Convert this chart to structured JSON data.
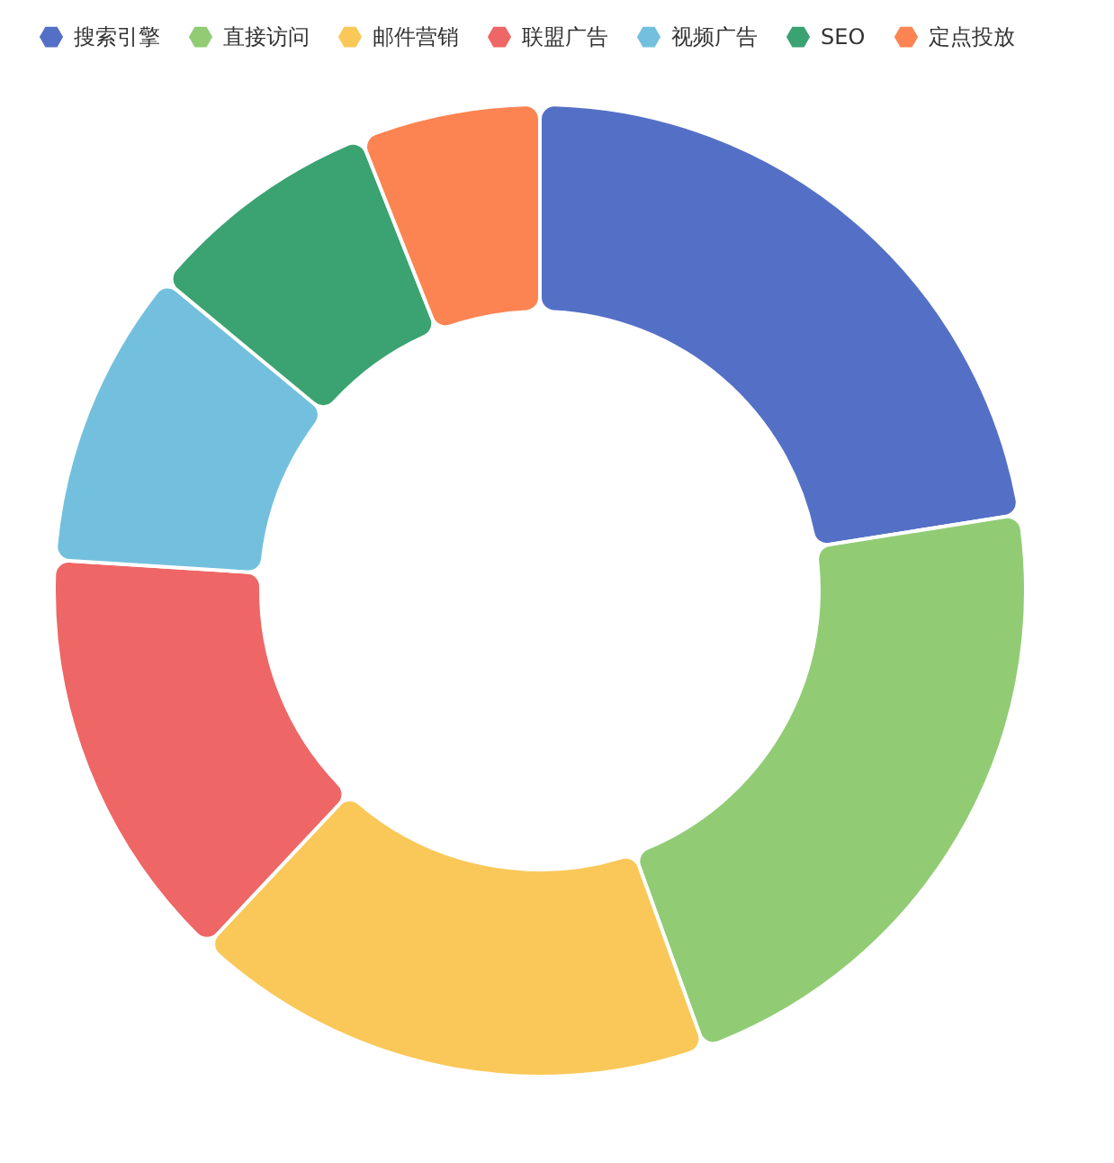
{
  "chart_data": {
    "type": "donut",
    "categories": [
      "搜索引擎",
      "直接访问",
      "邮件营销",
      "联盟广告",
      "视频广告",
      "SEO",
      "定点投放"
    ],
    "values": [
      22.5,
      22,
      17.5,
      14,
      10,
      8,
      6
    ],
    "colors": [
      "#5470c6",
      "#91cc75",
      "#fac858",
      "#ee6666",
      "#73c0de",
      "#3ba272",
      "#fc8452"
    ],
    "legend": "top left"
  }
}
